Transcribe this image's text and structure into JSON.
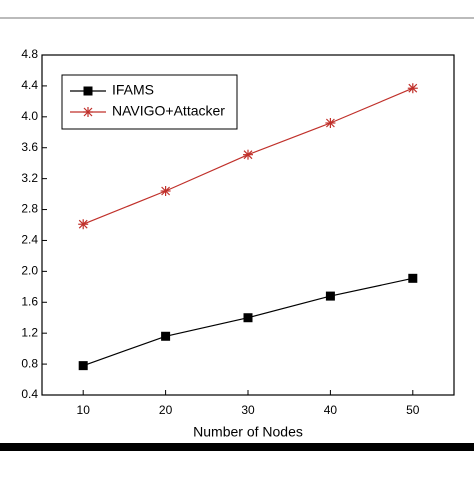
{
  "chart_data": {
    "type": "line",
    "x_label": "Number of Nodes",
    "x": [
      10,
      20,
      30,
      40,
      50
    ],
    "series": [
      {
        "name": "IFAMS",
        "color": "#000000",
        "marker": "square",
        "values": [
          0.78,
          1.16,
          1.4,
          1.68,
          1.91
        ]
      },
      {
        "name": "NAVIGO+Attacker",
        "color": "#c0302a",
        "marker": "asterisk",
        "values": [
          2.61,
          3.04,
          3.51,
          3.92,
          4.37
        ]
      }
    ],
    "xlim": [
      5,
      55
    ],
    "xticks": [
      10,
      20,
      30,
      40,
      50
    ],
    "ylim": [
      0.4,
      4.8
    ],
    "yticks": [
      0.4,
      0.8,
      1.2,
      1.6,
      {
        "value": 2.0,
        "label": "2.0"
      },
      2.4,
      2.8,
      3.2,
      3.6,
      {
        "value": 4.0,
        "label": "4.0"
      },
      4.4,
      4.8
    ],
    "legend": "upper left",
    "grid": false
  }
}
